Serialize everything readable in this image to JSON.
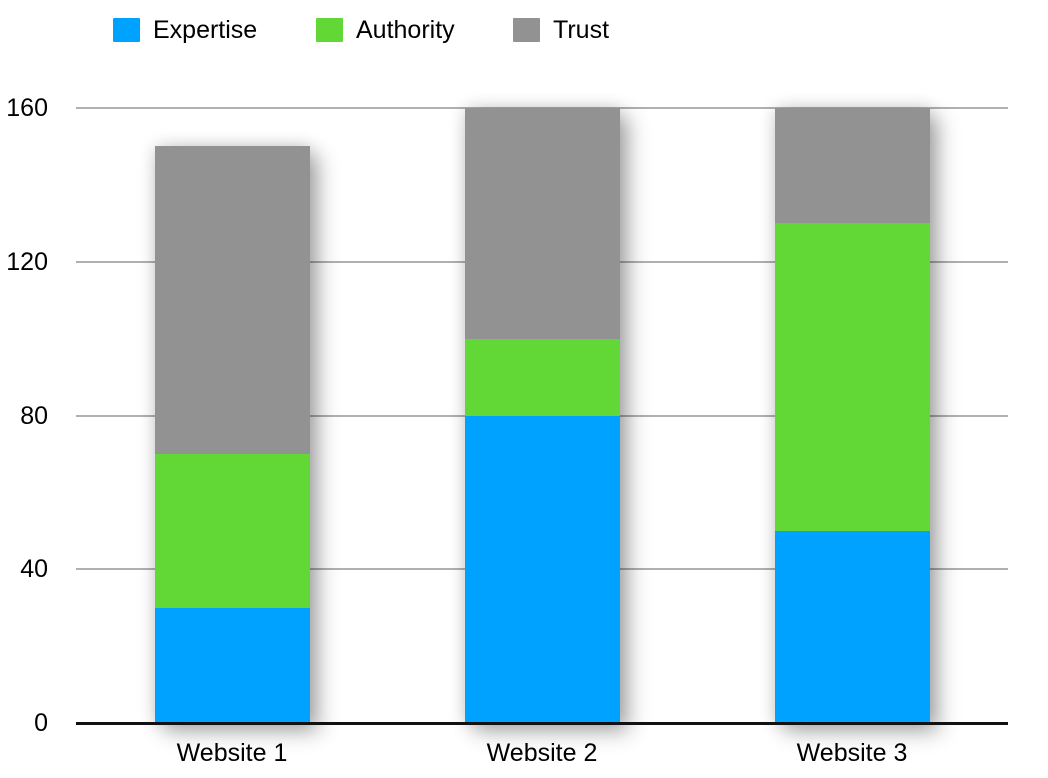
{
  "chart_data": {
    "type": "bar",
    "stacked": true,
    "title": "",
    "xlabel": "",
    "ylabel": "",
    "categories": [
      "Website 1",
      "Website 2",
      "Website 3"
    ],
    "series": [
      {
        "name": "Expertise",
        "color": "#00A2FF",
        "values": [
          30,
          80,
          50
        ]
      },
      {
        "name": "Authority",
        "color": "#61D836",
        "values": [
          40,
          20,
          80
        ]
      },
      {
        "name": "Trust",
        "color": "#929292",
        "values": [
          80,
          60,
          30
        ]
      }
    ],
    "totals": [
      150,
      160,
      160
    ],
    "ylim": [
      0,
      160
    ],
    "yticks": [
      0,
      40,
      80,
      120,
      160
    ],
    "grid": true,
    "legend_position": "top",
    "background": "#FFFFFF",
    "gridline_color": "#B0B0B0",
    "axis_color": "#111111",
    "text_color": "#000000"
  }
}
